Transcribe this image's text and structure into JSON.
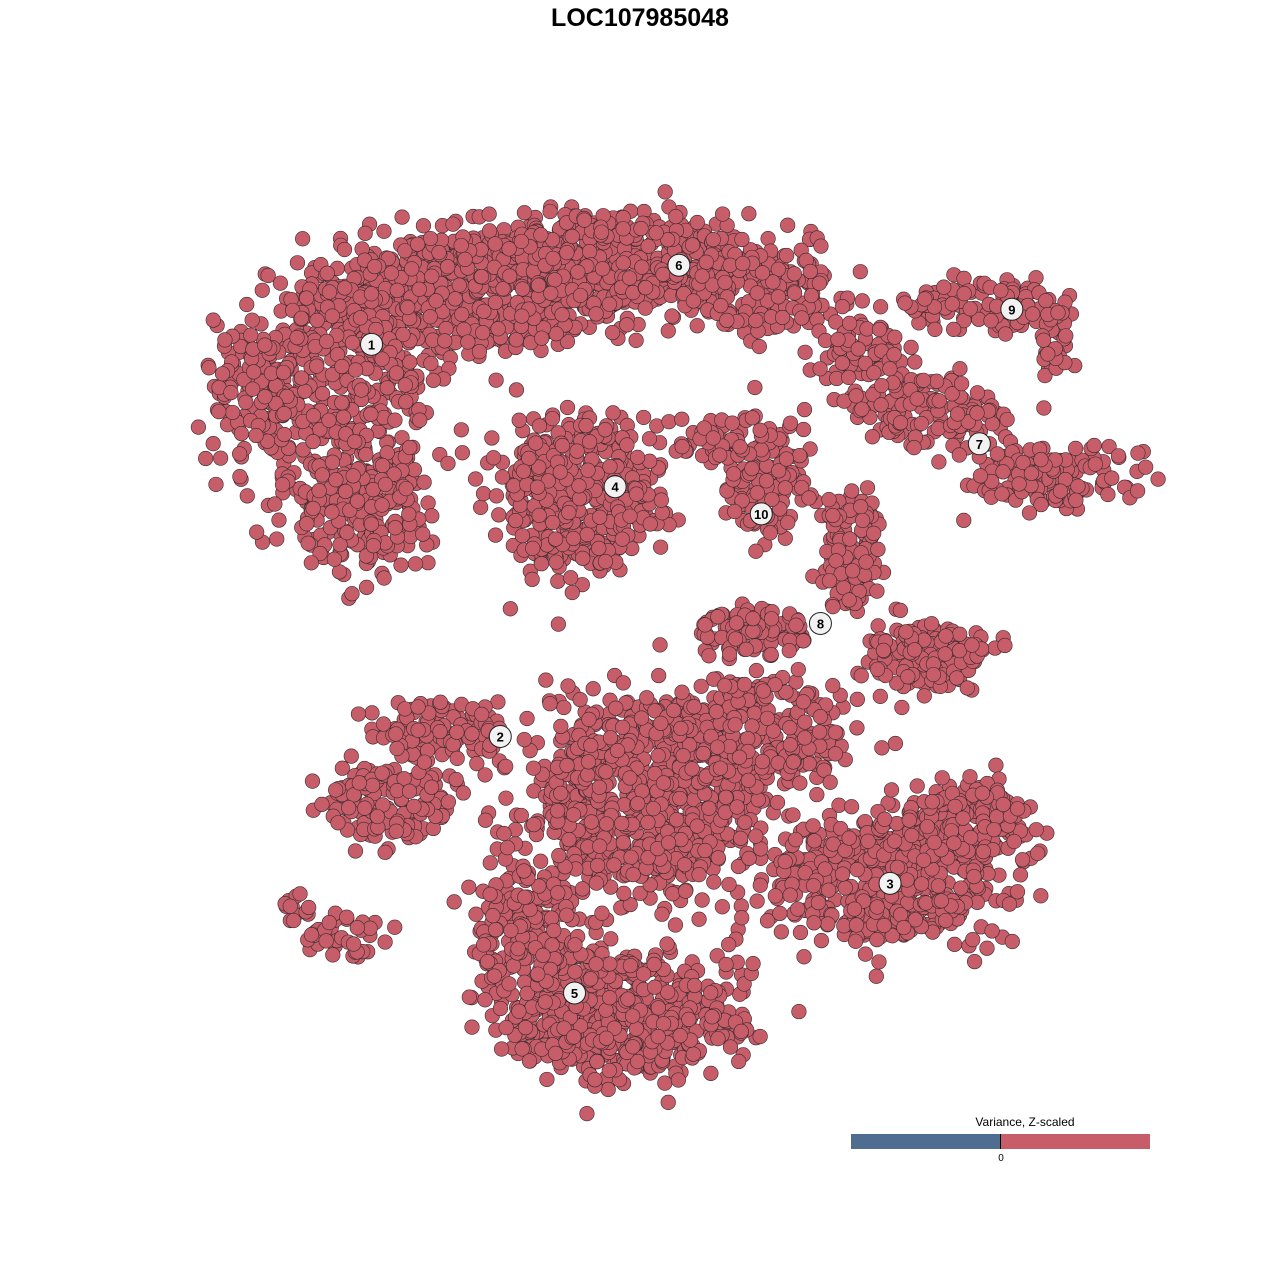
{
  "chart_data": {
    "type": "scatter",
    "title": "LOC107985048",
    "xlabel": "",
    "ylabel": "",
    "axes_visible": false,
    "grid": false,
    "point_color": "#c75d69",
    "point_outline": "#3b2b2e",
    "clusters": [
      {
        "label": "1",
        "x": -25.3,
        "y": 25.9
      },
      {
        "label": "2",
        "x": -14.2,
        "y": -8.8
      },
      {
        "label": "3",
        "x": 19.4,
        "y": -21.8
      },
      {
        "label": "4",
        "x": -4.3,
        "y": 13.3
      },
      {
        "label": "5",
        "x": -7.8,
        "y": -31.5
      },
      {
        "label": "6",
        "x": 1.2,
        "y": 32.9
      },
      {
        "label": "7",
        "x": 27.1,
        "y": 17.1
      },
      {
        "label": "8",
        "x": 13.4,
        "y": 1.2
      },
      {
        "label": "9",
        "x": 29.9,
        "y": 29.0
      },
      {
        "label": "10",
        "x": 8.3,
        "y": 10.9
      }
    ],
    "legend": {
      "title": "Variance, Z-scaled",
      "placement": "bottom-right",
      "tick_label": "0",
      "low_color": "#4f6d91",
      "high_color": "#c75d69"
    }
  }
}
